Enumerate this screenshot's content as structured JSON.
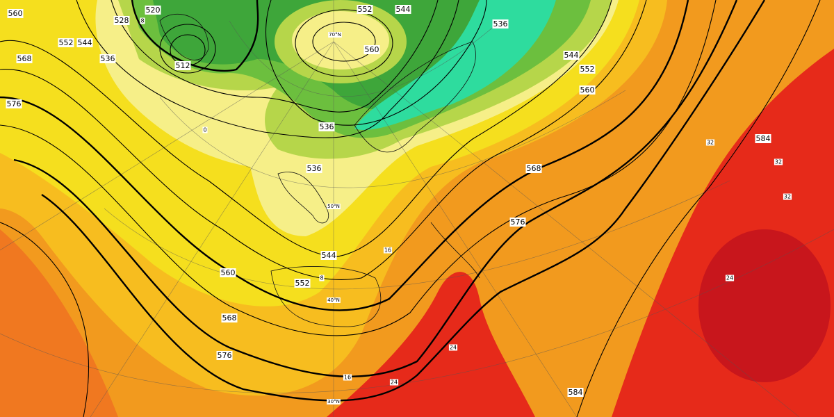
{
  "map": {
    "contour_labels": [
      "560",
      "552",
      "544",
      "568",
      "576",
      "536",
      "528",
      "520",
      "512",
      "552",
      "544",
      "536",
      "560",
      "536",
      "536",
      "544",
      "552",
      "560",
      "568",
      "576",
      "544",
      "552",
      "560",
      "568",
      "576",
      "584",
      "584"
    ],
    "latitude_labels": [
      "70°N",
      "50°N",
      "40°N",
      "30°N"
    ],
    "isotherm_labels": [
      "0",
      "8",
      "8",
      "16",
      "16",
      "24",
      "24",
      "24",
      "32",
      "32",
      "32"
    ]
  }
}
